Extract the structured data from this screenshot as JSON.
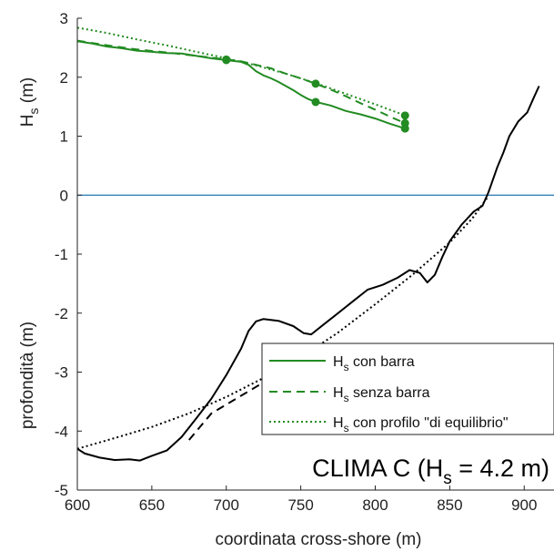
{
  "chart_data": {
    "type": "line",
    "xlabel": "coordinata cross-shore (m)",
    "ylabel_top": {
      "main": "H",
      "sub": "s",
      "rest": " (m)"
    },
    "ylabel_bottom": "profondità (m)",
    "xlim": [
      600,
      920
    ],
    "ylim": [
      -5,
      3
    ],
    "x_ticks": [
      600,
      650,
      700,
      750,
      800,
      850,
      900
    ],
    "x_tick_labels": [
      "600",
      "650",
      "700",
      "750",
      "800",
      "850",
      "900"
    ],
    "y_ticks": [
      -5,
      -4,
      -3,
      -2,
      -1,
      0,
      1,
      2,
      3
    ],
    "y_tick_labels": [
      "-5",
      "-4",
      "-3",
      "-2",
      "-1",
      "0",
      "1",
      "2",
      "3"
    ],
    "grid": false,
    "legend": {
      "placement": "bottom-right",
      "entries": [
        {
          "main": "H",
          "sub": "s",
          "rest": " con barra",
          "style": "solid",
          "color": "#228B22"
        },
        {
          "main": "H",
          "sub": "s",
          "rest": " senza barra",
          "style": "dashed",
          "color": "#228B22"
        },
        {
          "main": "H",
          "sub": "s",
          "rest": " con profilo \"di equilibrio\"",
          "style": "dotted",
          "color": "#228B22"
        }
      ]
    },
    "annotation": {
      "main": "CLIMA C (H",
      "sub": "s",
      "rest": " = 4.2 m)"
    },
    "zero_line": {
      "y": 0,
      "color": "#1f77b4"
    },
    "series": [
      {
        "name": "H_s con barra",
        "color": "#228B22",
        "style": "solid",
        "x": [
          600,
          610,
          620,
          630,
          640,
          650,
          660,
          670,
          680,
          690,
          700,
          710,
          715,
          720,
          725,
          730,
          735,
          740,
          745,
          750,
          755,
          760,
          770,
          780,
          790,
          800,
          810,
          820
        ],
        "y": [
          2.61,
          2.57,
          2.52,
          2.49,
          2.45,
          2.43,
          2.41,
          2.4,
          2.36,
          2.32,
          2.29,
          2.26,
          2.21,
          2.1,
          2.03,
          1.98,
          1.92,
          1.85,
          1.78,
          1.7,
          1.63,
          1.58,
          1.52,
          1.43,
          1.37,
          1.3,
          1.21,
          1.13
        ],
        "markers": [
          [
            700,
            2.29
          ],
          [
            760,
            1.58
          ],
          [
            820,
            1.13
          ]
        ]
      },
      {
        "name": "H_s senza barra",
        "color": "#228B22",
        "style": "dashed",
        "x": [
          600,
          620,
          640,
          660,
          680,
          700,
          710,
          720,
          730,
          740,
          750,
          760,
          770,
          780,
          790,
          800,
          810,
          820
        ],
        "y": [
          2.62,
          2.54,
          2.47,
          2.42,
          2.36,
          2.3,
          2.27,
          2.21,
          2.15,
          2.06,
          1.98,
          1.89,
          1.79,
          1.68,
          1.56,
          1.45,
          1.33,
          1.22
        ],
        "markers": [
          [
            700,
            2.3
          ],
          [
            760,
            1.89
          ],
          [
            820,
            1.22
          ]
        ]
      },
      {
        "name": "H_s con profilo \"di equilibrio\"",
        "color": "#228B22",
        "style": "dotted",
        "x": [
          600,
          620,
          640,
          660,
          680,
          700,
          720,
          740,
          760,
          780,
          800,
          820
        ],
        "y": [
          2.84,
          2.75,
          2.64,
          2.54,
          2.43,
          2.32,
          2.2,
          2.06,
          1.9,
          1.72,
          1.54,
          1.35
        ],
        "markers": [
          [
            820,
            1.35
          ]
        ]
      },
      {
        "name": "profondità (con barra)",
        "color": "#000000",
        "style": "solid",
        "x": [
          600,
          605,
          615,
          625,
          635,
          642,
          650,
          660,
          670,
          680,
          690,
          700,
          710,
          715,
          720,
          725,
          735,
          745,
          752,
          757,
          765,
          775,
          785,
          795,
          805,
          815,
          823,
          830,
          835,
          840,
          845,
          850,
          858,
          866,
          872,
          876,
          882,
          886,
          890,
          896,
          902,
          906,
          910
        ],
        "y": [
          -4.3,
          -4.38,
          -4.45,
          -4.49,
          -4.48,
          -4.5,
          -4.42,
          -4.33,
          -4.1,
          -3.78,
          -3.45,
          -3.05,
          -2.6,
          -2.3,
          -2.14,
          -2.1,
          -2.13,
          -2.22,
          -2.34,
          -2.36,
          -2.2,
          -2.0,
          -1.8,
          -1.6,
          -1.52,
          -1.4,
          -1.27,
          -1.32,
          -1.48,
          -1.35,
          -1.05,
          -0.78,
          -0.5,
          -0.28,
          -0.18,
          0.05,
          0.48,
          0.72,
          1.0,
          1.25,
          1.4,
          1.63,
          1.85
        ]
      },
      {
        "name": "profondità (senza barra)",
        "color": "#000000",
        "style": "dashed",
        "x": [
          675,
          690,
          700,
          710,
          720,
          730
        ],
        "y": [
          -4.15,
          -3.7,
          -3.55,
          -3.4,
          -3.25,
          -3.1
        ]
      },
      {
        "name": "profondità (profilo di equilibrio)",
        "color": "#000000",
        "style": "dotted",
        "x": [
          600,
          625,
          650,
          675,
          700,
          725,
          750,
          775,
          800,
          825,
          850,
          865,
          875
        ],
        "y": [
          -4.3,
          -4.12,
          -3.93,
          -3.7,
          -3.42,
          -3.1,
          -2.75,
          -2.33,
          -1.85,
          -1.35,
          -0.8,
          -0.4,
          -0.05
        ]
      }
    ]
  }
}
